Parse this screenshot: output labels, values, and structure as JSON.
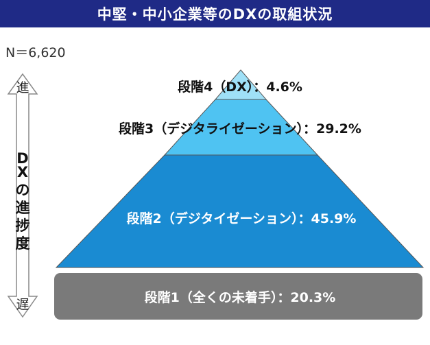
{
  "title": "中堅・中小企業等のDXの取組状況",
  "sample": "N＝6,620",
  "axis": {
    "top": "進",
    "bottom": "遅",
    "label_chars": [
      "D",
      "X",
      "の",
      "進",
      "捗",
      "度"
    ]
  },
  "colors": {
    "title_bg": "#1f2a86",
    "level4": "#9fe0f7",
    "level3": "#4fc3f2",
    "level2": "#1a8bd2",
    "level1": "#7a7a7a"
  },
  "levels": [
    {
      "label": "段階4（DX）：4.6%",
      "name": "段階4（DX）",
      "value": 4.6
    },
    {
      "label": "段階3（デジタライゼーション）：29.2%",
      "name": "段階3（デジタライゼーション）",
      "value": 29.2
    },
    {
      "label": "段階2（デジタイゼーション）：45.9%",
      "name": "段階2（デジタイゼーション）",
      "value": 45.9
    },
    {
      "label": "段階1（全くの未着手）：20.3%",
      "name": "段階1（全くの未着手）",
      "value": 20.3
    }
  ]
}
